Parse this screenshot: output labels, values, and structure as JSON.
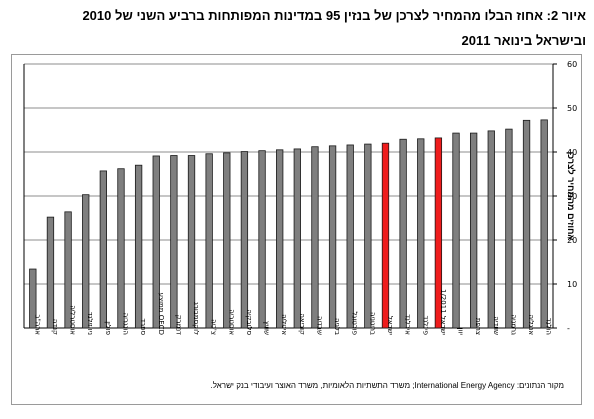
{
  "title": {
    "line1": "איור 2: אחוז הבלו מהמחיר לצרכן של בנזין 95 במדינות המפותחות ברביע השני של 2010",
    "line2": "ובישראל בינואר 2011"
  },
  "source": "מקור הנתונים: International Energy Agency; משרד התשתיות הלאומיות, משרד האוצר ועיבודי בנק ישראל.",
  "chart_data": {
    "type": "bar",
    "ylabel": "אחוזים מהמחיר לצרכן",
    "ylim": [
      0,
      60
    ],
    "yticks": [
      0,
      10,
      20,
      30,
      40,
      50,
      60
    ],
    "ytick_labels": [
      "-",
      "10",
      "20",
      "30",
      "40",
      "50",
      "60"
    ],
    "categories": [
      "ארה\"ב",
      "קנדה",
      "אוסטרליה",
      "ניו זילנד",
      "פולין",
      "הונגריה",
      "ספרד",
      "OECD ממוצע",
      "דנמרק",
      "לוקסמבורג",
      "צ'כיה",
      "אוסטריה",
      "סלובקיה",
      "שוויץ",
      "איטליה",
      "קוריאה",
      "שבדיה",
      "בלגיה",
      "פורטוגל",
      "בריטניה",
      "ישראל",
      "אירלנד",
      "פינלנד",
      "ישראל 1/2011",
      "יוון",
      "צרפת",
      "שוודיה",
      "גרמניה",
      "אנגליה",
      "הולנד"
    ],
    "values": [
      13.4,
      25.2,
      26.4,
      30.3,
      35.7,
      36.2,
      37.0,
      39.1,
      39.2,
      39.2,
      39.6,
      39.8,
      40.1,
      40.3,
      40.5,
      40.7,
      41.2,
      41.4,
      41.6,
      41.8,
      42.0,
      42.9,
      43.0,
      43.2,
      44.3,
      44.3,
      44.8,
      45.2,
      47.2,
      47.3
    ],
    "highlight_categories": [
      "ישראל",
      "ישראל 1/2011"
    ],
    "colors": {
      "default_bar": "#7f7f7f",
      "highlight_bar": "#ee1c1c",
      "bar_edge": "#1a1a1a"
    },
    "grid": true
  }
}
